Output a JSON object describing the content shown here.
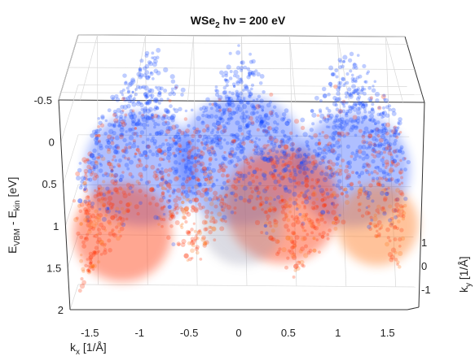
{
  "chart_data": {
    "type": "scatter",
    "title": "WSe2 hν = 200 eV",
    "title_main": "WSe",
    "title_sub": "2",
    "title_rest": " hν = 200 eV",
    "xlabel_main": "k",
    "xlabel_sub": "x",
    "xlabel_rest": " [1/Å]",
    "ylabel_main": "k",
    "ylabel_sub": "y",
    "ylabel_rest": " [1/Å]",
    "zlabel_main": "E",
    "zlabel_sub1": "VBM",
    "zlabel_mid": " - E",
    "zlabel_sub2": "kin",
    "zlabel_rest": " [eV]",
    "x_ticks": [
      "-1.5",
      "-1",
      "-0.5",
      "0",
      "0.5",
      "1",
      "1.5"
    ],
    "x_tick_values": [
      -1.5,
      -1,
      -0.5,
      0,
      0.5,
      1,
      1.5
    ],
    "xlim": [
      -1.7,
      1.7
    ],
    "y_ticks": [
      "1",
      "0",
      "-1"
    ],
    "y_tick_values": [
      1,
      0,
      -1
    ],
    "ylim": [
      -1.3,
      1.3
    ],
    "z_ticks": [
      "-0.5",
      "0",
      "0.5",
      "1",
      "1.5",
      "2"
    ],
    "z_tick_values": [
      -0.5,
      0,
      0.5,
      1,
      1.5,
      2
    ],
    "zlim": [
      -0.5,
      2
    ],
    "z_reversed": true,
    "grid": true,
    "colors": {
      "blue": "#1a4cff",
      "red": "#ff3a10",
      "orange": "#ff7a20",
      "grey": "#9a9ab0"
    },
    "bands": [
      {
        "name_hidden": true,
        "peaks_kx": [
          -0.95,
          0.0,
          1.1
        ],
        "top_energy": -0.45,
        "valley_energy": 0.85
      }
    ]
  }
}
